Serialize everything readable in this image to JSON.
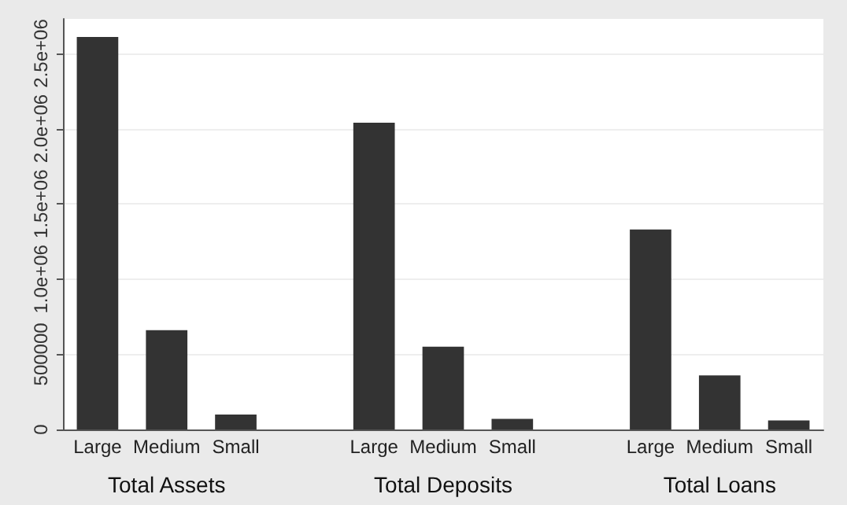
{
  "chart_data": {
    "type": "bar",
    "categories": [
      "Large",
      "Medium",
      "Small",
      null,
      "Large",
      "Medium",
      "Small",
      null,
      "Large",
      "Medium",
      "Small"
    ],
    "values": [
      2610000,
      660000,
      100000,
      null,
      2040000,
      550000,
      70000,
      null,
      1330000,
      360000,
      60000
    ],
    "color": "#333333",
    "annotations": [
      "Total Assets",
      "Total Deposits",
      "Total Loans"
    ],
    "ylim": [
      0,
      2730000
    ],
    "yticks": [
      0,
      500000,
      {
        "value": 1000000,
        "label": "1.0e+06"
      },
      {
        "value": 1500000,
        "label": "1.5e+06"
      },
      {
        "value": 2000000,
        "label": "2.0e+06"
      },
      {
        "value": 2500000,
        "label": "2.5e+06"
      }
    ],
    "grid": "y"
  }
}
